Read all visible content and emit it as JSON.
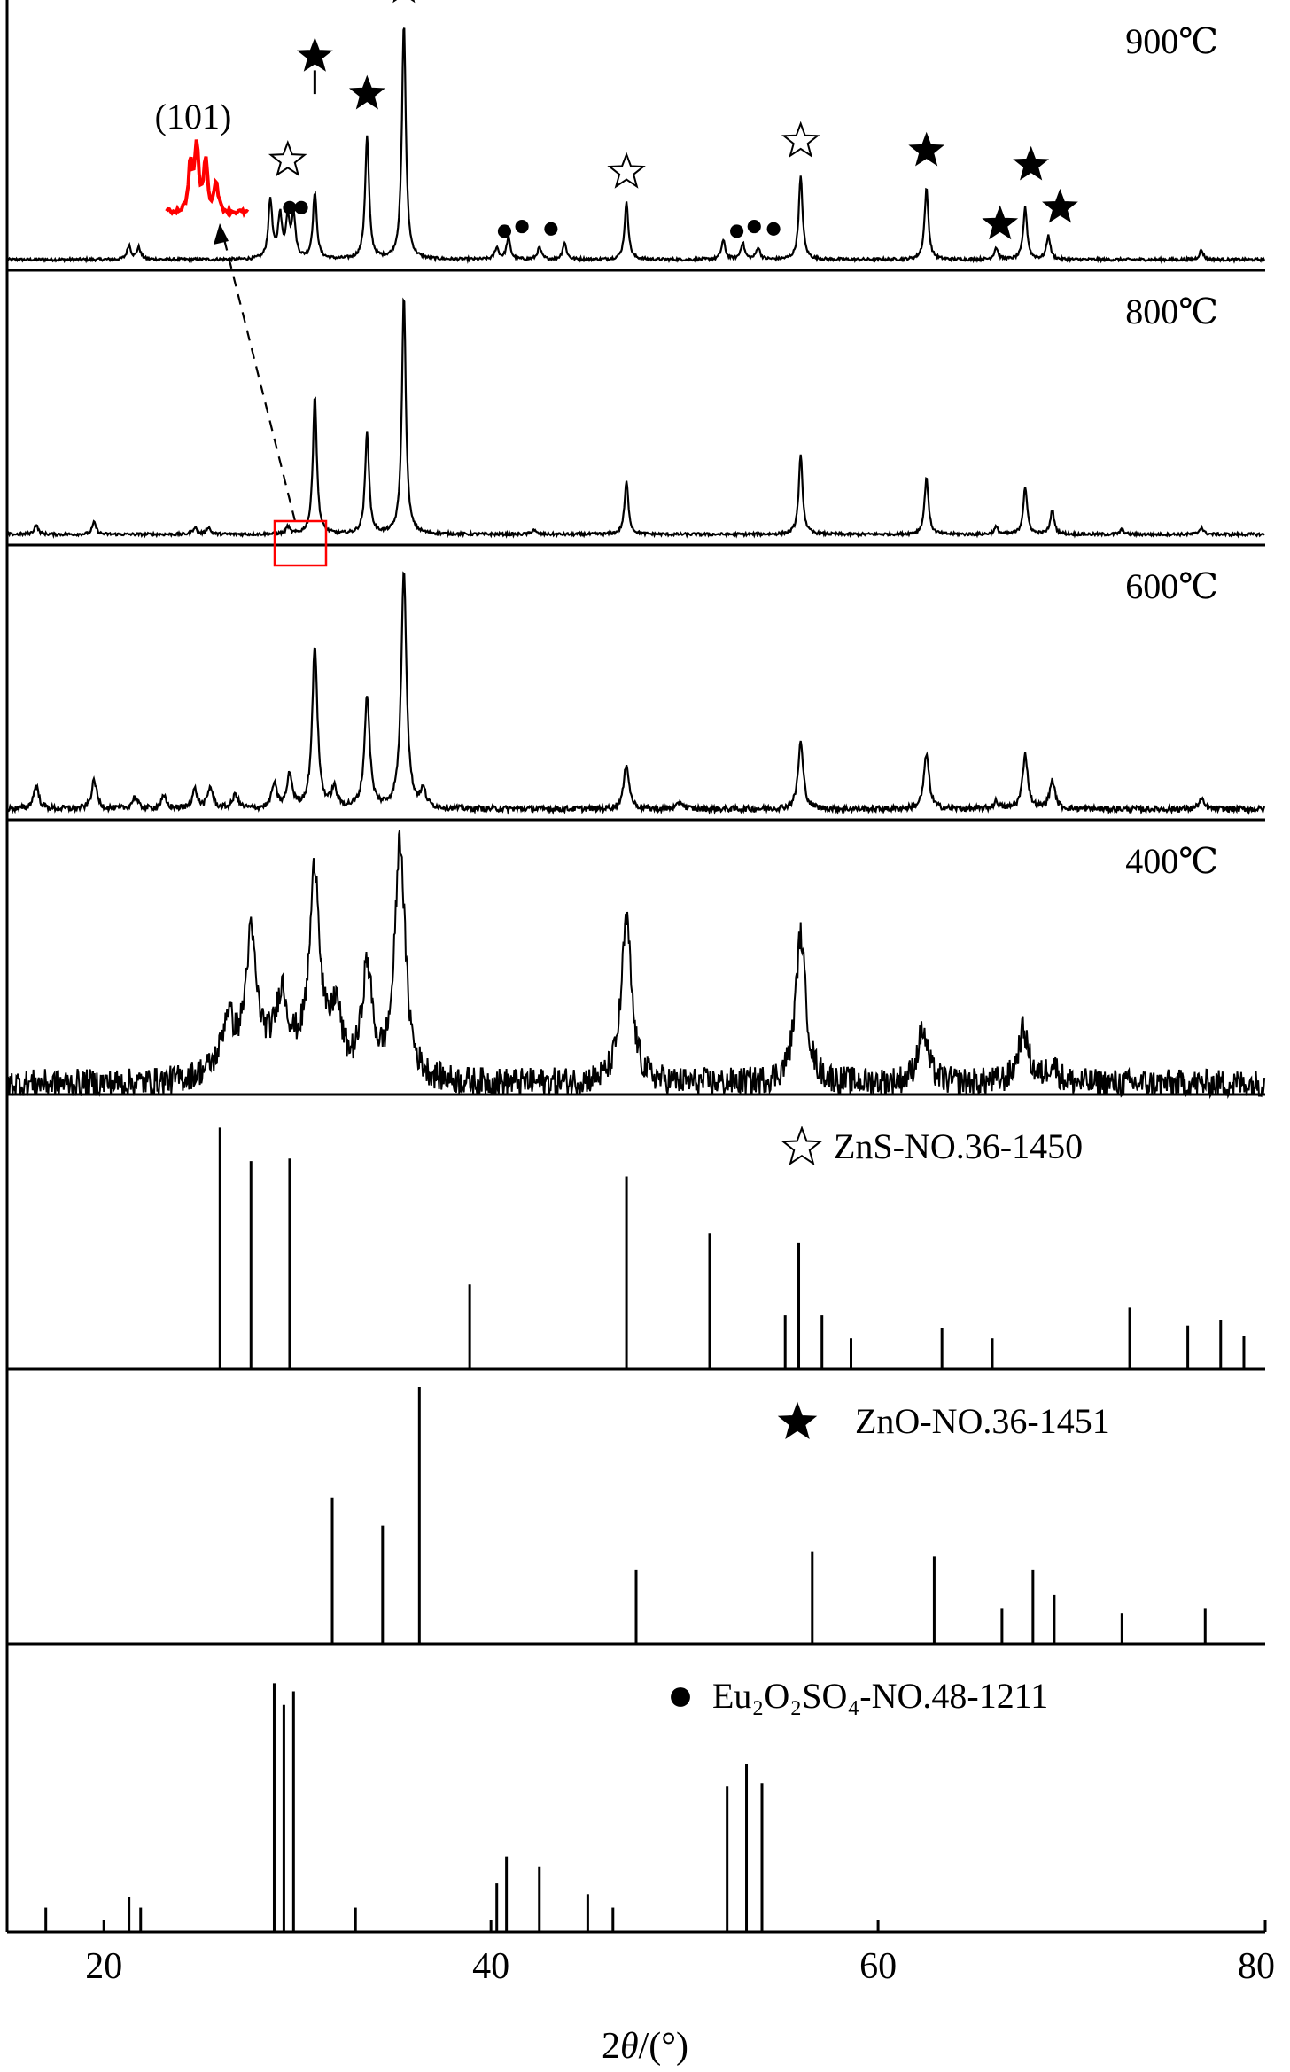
{
  "chart_data": {
    "type": "line",
    "xlabel_parts": [
      "2",
      "θ",
      "/(°)"
    ],
    "xlim": [
      15,
      80
    ],
    "xticks": [
      "20",
      "40",
      "60",
      "80"
    ],
    "xtick_values": [
      20,
      40,
      60,
      80
    ],
    "colors": {
      "trace": "#000000",
      "highlight": "#ff0000"
    },
    "panels": [
      {
        "kind": "xrd",
        "label": "900℃",
        "peaks": [
          [
            21.3,
            0.06
          ],
          [
            21.8,
            0.05
          ],
          [
            28.6,
            0.25
          ],
          [
            29.1,
            0.18
          ],
          [
            29.5,
            0.16
          ],
          [
            29.8,
            0.18
          ],
          [
            30.9,
            0.28
          ],
          [
            33.6,
            0.52
          ],
          [
            35.5,
            1.0
          ],
          [
            40.3,
            0.05
          ],
          [
            40.9,
            0.09
          ],
          [
            42.5,
            0.05
          ],
          [
            43.8,
            0.07
          ],
          [
            47.0,
            0.24
          ],
          [
            52.0,
            0.08
          ],
          [
            53.0,
            0.07
          ],
          [
            53.8,
            0.05
          ],
          [
            56.0,
            0.35
          ],
          [
            62.5,
            0.3
          ],
          [
            66.1,
            0.05
          ],
          [
            67.6,
            0.22
          ],
          [
            68.8,
            0.1
          ],
          [
            76.7,
            0.04
          ]
        ],
        "markers": [
          {
            "x": 35.5,
            "level": 1.15,
            "symbol": "filled-star"
          },
          {
            "x": 30.9,
            "level": 0.86,
            "symbol": "filled-star"
          },
          {
            "x": 33.6,
            "level": 0.7,
            "symbol": "filled-star"
          },
          {
            "x": 29.5,
            "level": 0.42,
            "symbol": "open-star"
          },
          {
            "x": 29.6,
            "level": 0.22,
            "symbol": "dot"
          },
          {
            "x": 30.2,
            "level": 0.22,
            "symbol": "dot"
          },
          {
            "x": 47.0,
            "level": 0.37,
            "symbol": "open-star"
          },
          {
            "x": 56.0,
            "level": 0.5,
            "symbol": "open-star"
          },
          {
            "x": 62.5,
            "level": 0.46,
            "symbol": "filled-star"
          },
          {
            "x": 66.3,
            "level": 0.15,
            "symbol": "filled-star"
          },
          {
            "x": 67.9,
            "level": 0.4,
            "symbol": "filled-star"
          },
          {
            "x": 69.4,
            "level": 0.22,
            "symbol": "filled-star"
          },
          {
            "x": 40.7,
            "level": 0.12,
            "symbol": "dot"
          },
          {
            "x": 41.6,
            "level": 0.14,
            "symbol": "dot"
          },
          {
            "x": 43.1,
            "level": 0.13,
            "symbol": "dot"
          },
          {
            "x": 52.7,
            "level": 0.12,
            "symbol": "dot"
          },
          {
            "x": 53.6,
            "level": 0.14,
            "symbol": "dot"
          },
          {
            "x": 54.6,
            "level": 0.13,
            "symbol": "dot"
          }
        ],
        "inset_label": "(101)"
      },
      {
        "kind": "xrd",
        "label": "800℃",
        "peaks": [
          [
            16.5,
            0.04
          ],
          [
            19.5,
            0.05
          ],
          [
            24.7,
            0.03
          ],
          [
            25.4,
            0.03
          ],
          [
            29.5,
            0.03
          ],
          [
            30.9,
            0.58
          ],
          [
            33.6,
            0.43
          ],
          [
            35.5,
            1.0
          ],
          [
            42.2,
            0.02
          ],
          [
            47.0,
            0.22
          ],
          [
            56.0,
            0.33
          ],
          [
            62.5,
            0.24
          ],
          [
            66.1,
            0.03
          ],
          [
            67.6,
            0.2
          ],
          [
            69.0,
            0.1
          ],
          [
            72.6,
            0.02
          ],
          [
            76.7,
            0.03
          ]
        ]
      },
      {
        "kind": "xrd",
        "label": "600℃",
        "peaks": [
          [
            16.5,
            0.1
          ],
          [
            19.5,
            0.12
          ],
          [
            21.6,
            0.05
          ],
          [
            23.1,
            0.05
          ],
          [
            24.7,
            0.08
          ],
          [
            25.5,
            0.09
          ],
          [
            26.8,
            0.06
          ],
          [
            28.8,
            0.1
          ],
          [
            29.6,
            0.14
          ],
          [
            30.9,
            0.68
          ],
          [
            31.9,
            0.08
          ],
          [
            33.6,
            0.47
          ],
          [
            35.5,
            1.0
          ],
          [
            36.5,
            0.07
          ],
          [
            47.0,
            0.19
          ],
          [
            49.8,
            0.03
          ],
          [
            56.0,
            0.28
          ],
          [
            62.5,
            0.23
          ],
          [
            66.1,
            0.03
          ],
          [
            67.6,
            0.23
          ],
          [
            69.0,
            0.12
          ],
          [
            76.7,
            0.04
          ]
        ]
      },
      {
        "kind": "xrd",
        "label": "400℃",
        "peaks": [
          [
            26.4,
            0.2
          ],
          [
            27.6,
            0.5
          ],
          [
            29.2,
            0.25
          ],
          [
            30.9,
            0.82
          ],
          [
            32.0,
            0.25
          ],
          [
            33.6,
            0.45
          ],
          [
            35.3,
            1.0
          ],
          [
            47.0,
            0.68
          ],
          [
            56.0,
            0.62
          ],
          [
            62.3,
            0.22
          ],
          [
            67.5,
            0.22
          ],
          [
            69.0,
            0.08
          ]
        ]
      },
      {
        "kind": "ref",
        "legend_symbol": "open-star",
        "legend_text": "ZnS-NO.36-1450",
        "lines": [
          [
            26.0,
            0.94
          ],
          [
            27.6,
            0.81
          ],
          [
            29.6,
            0.82
          ],
          [
            38.9,
            0.33
          ],
          [
            47.0,
            0.75
          ],
          [
            51.3,
            0.53
          ],
          [
            55.2,
            0.21
          ],
          [
            55.9,
            0.49
          ],
          [
            57.1,
            0.21
          ],
          [
            58.6,
            0.12
          ],
          [
            63.3,
            0.16
          ],
          [
            65.9,
            0.12
          ],
          [
            73.0,
            0.24
          ],
          [
            76.0,
            0.17
          ],
          [
            77.7,
            0.19
          ],
          [
            78.9,
            0.13
          ]
        ]
      },
      {
        "kind": "ref",
        "legend_symbol": "filled-star",
        "legend_text": "ZnO-NO.36-1451",
        "lines": [
          [
            31.8,
            0.57
          ],
          [
            34.4,
            0.46
          ],
          [
            36.3,
            1.0
          ],
          [
            47.5,
            0.29
          ],
          [
            56.6,
            0.36
          ],
          [
            62.9,
            0.34
          ],
          [
            66.4,
            0.14
          ],
          [
            68.0,
            0.29
          ],
          [
            69.1,
            0.19
          ],
          [
            72.6,
            0.12
          ],
          [
            76.9,
            0.14
          ]
        ]
      },
      {
        "kind": "ref",
        "legend_symbol": "dot",
        "legend_text": "Eu₂O₂SO₄-NO.48-1211",
        "lines": [
          [
            17.0,
            0.09
          ],
          [
            21.3,
            0.13
          ],
          [
            21.9,
            0.09
          ],
          [
            28.8,
            0.92
          ],
          [
            29.3,
            0.84
          ],
          [
            29.8,
            0.89
          ],
          [
            33.0,
            0.09
          ],
          [
            40.3,
            0.18
          ],
          [
            40.8,
            0.28
          ],
          [
            42.5,
            0.24
          ],
          [
            45.0,
            0.14
          ],
          [
            46.3,
            0.09
          ],
          [
            52.2,
            0.54
          ],
          [
            53.2,
            0.62
          ],
          [
            54.0,
            0.55
          ]
        ]
      }
    ]
  }
}
